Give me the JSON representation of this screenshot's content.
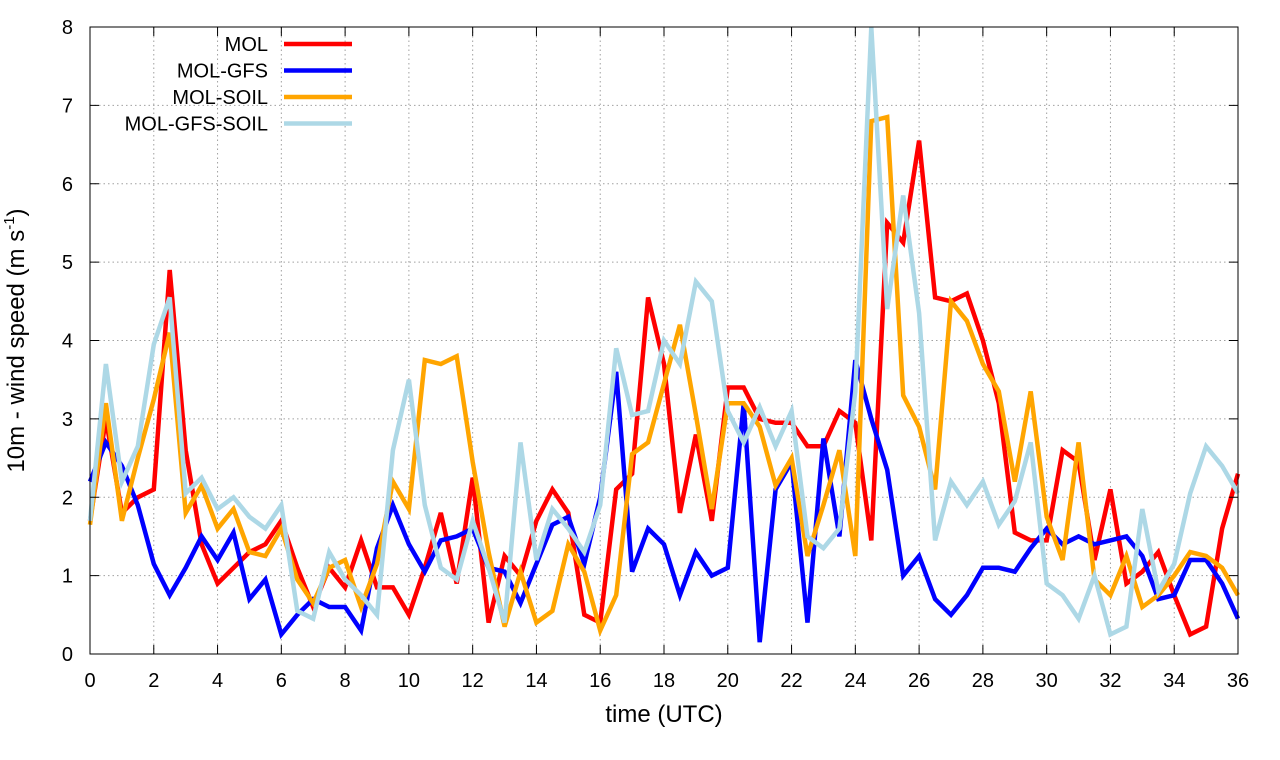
{
  "chart_data": {
    "type": "line",
    "title": "",
    "xlabel": "time (UTC)",
    "ylabel_main": "10m - wind speed  (m s",
    "ylabel_sup": "-1",
    "ylabel_tail": ")",
    "xlim": [
      0,
      36
    ],
    "ylim": [
      0,
      8
    ],
    "xticks": [
      0,
      2,
      4,
      6,
      8,
      10,
      12,
      14,
      16,
      18,
      20,
      22,
      24,
      26,
      28,
      30,
      32,
      34,
      36
    ],
    "yticks": [
      0,
      1,
      2,
      3,
      4,
      5,
      6,
      7,
      8
    ],
    "grid": true,
    "legend_position": "top-left",
    "x": [
      0,
      0.5,
      1,
      1.5,
      2,
      2.5,
      3,
      3.5,
      4,
      4.5,
      5,
      5.5,
      6,
      6.5,
      7,
      7.5,
      8,
      8.5,
      9,
      9.5,
      10,
      10.5,
      11,
      11.5,
      12,
      12.5,
      13,
      13.5,
      14,
      14.5,
      15,
      15.5,
      16,
      16.5,
      17,
      17.5,
      18,
      18.5,
      19,
      19.5,
      20,
      20.5,
      21,
      21.5,
      22,
      22.5,
      23,
      23.5,
      24,
      24.5,
      25,
      25.5,
      26,
      26.5,
      27,
      27.5,
      28,
      28.5,
      29,
      29.5,
      30,
      30.5,
      31,
      31.5,
      32,
      32.5,
      33,
      33.5,
      34,
      34.5,
      35,
      35.5,
      36
    ],
    "series": [
      {
        "name": "MOL",
        "color": "#ff0000",
        "values": [
          1.7,
          3.0,
          1.8,
          2.0,
          2.1,
          4.9,
          2.6,
          1.4,
          0.9,
          1.1,
          1.3,
          1.4,
          1.7,
          1.1,
          0.6,
          1.1,
          0.85,
          1.45,
          0.85,
          0.85,
          0.5,
          1.1,
          1.8,
          0.9,
          2.25,
          0.4,
          1.25,
          1.0,
          1.7,
          2.1,
          1.8,
          0.5,
          0.4,
          2.1,
          2.3,
          4.55,
          3.7,
          1.8,
          2.8,
          1.7,
          3.4,
          3.4,
          3.0,
          2.95,
          2.95,
          2.65,
          2.65,
          3.1,
          2.95,
          1.45,
          5.5,
          5.25,
          6.55,
          4.55,
          4.5,
          4.6,
          4.0,
          3.2,
          1.55,
          1.45,
          1.45,
          2.6,
          2.45,
          1.2,
          2.1,
          0.9,
          1.05,
          1.3,
          0.75,
          0.25,
          0.35,
          1.6,
          2.3
        ]
      },
      {
        "name": "MOL-GFS",
        "color": "#0000ff",
        "values": [
          2.2,
          2.7,
          2.4,
          1.9,
          1.15,
          0.75,
          1.1,
          1.5,
          1.2,
          1.55,
          0.7,
          0.95,
          0.25,
          0.5,
          0.7,
          0.6,
          0.6,
          0.3,
          1.35,
          1.9,
          1.4,
          1.05,
          1.45,
          1.5,
          1.6,
          1.1,
          1.05,
          0.65,
          1.15,
          1.65,
          1.75,
          1.15,
          2.0,
          3.6,
          1.05,
          1.6,
          1.4,
          0.75,
          1.3,
          1.0,
          1.1,
          3.2,
          0.15,
          2.1,
          2.45,
          0.4,
          2.75,
          1.5,
          3.75,
          3.0,
          2.35,
          1.0,
          1.25,
          0.7,
          0.5,
          0.75,
          1.1,
          1.1,
          1.05,
          1.35,
          1.6,
          1.4,
          1.5,
          1.4,
          1.45,
          1.5,
          1.25,
          0.7,
          0.75,
          1.2,
          1.2,
          0.9,
          0.45
        ]
      },
      {
        "name": "MOL-SOIL",
        "color": "#ffa500",
        "values": [
          1.65,
          3.2,
          1.7,
          2.5,
          3.25,
          4.1,
          1.8,
          2.15,
          1.6,
          1.85,
          1.3,
          1.25,
          1.6,
          0.95,
          0.65,
          1.1,
          1.2,
          0.6,
          1.15,
          2.2,
          1.85,
          3.75,
          3.7,
          3.8,
          2.45,
          1.3,
          0.35,
          1.05,
          0.4,
          0.55,
          1.4,
          1.05,
          0.3,
          0.75,
          2.55,
          2.7,
          3.45,
          4.2,
          3.05,
          1.85,
          3.2,
          3.2,
          2.9,
          2.15,
          2.5,
          1.25,
          1.9,
          2.6,
          1.25,
          6.8,
          6.85,
          3.3,
          2.9,
          2.1,
          4.5,
          4.25,
          3.7,
          3.35,
          2.2,
          3.35,
          1.75,
          1.2,
          2.7,
          0.95,
          0.75,
          1.25,
          0.6,
          0.75,
          1.0,
          1.3,
          1.25,
          1.1,
          0.75
        ]
      },
      {
        "name": "MOL-GFS-SOIL",
        "color": "#add8e6",
        "values": [
          1.7,
          3.7,
          2.2,
          2.65,
          3.95,
          4.55,
          2.05,
          2.25,
          1.85,
          2.0,
          1.75,
          1.6,
          1.9,
          0.55,
          0.45,
          1.3,
          0.95,
          0.75,
          0.5,
          2.6,
          3.5,
          1.9,
          1.1,
          0.95,
          1.7,
          1.1,
          0.4,
          2.7,
          1.2,
          1.85,
          1.6,
          1.3,
          1.9,
          3.9,
          3.05,
          3.1,
          4.0,
          3.7,
          4.75,
          4.5,
          3.1,
          2.7,
          3.15,
          2.65,
          3.1,
          1.5,
          1.35,
          1.6,
          3.35,
          8.0,
          4.4,
          5.85,
          4.35,
          1.45,
          2.2,
          1.9,
          2.2,
          1.65,
          1.95,
          2.7,
          0.9,
          0.75,
          0.45,
          1.0,
          0.25,
          0.35,
          1.85,
          0.8,
          1.15,
          2.05,
          2.65,
          2.4,
          2.05
        ]
      }
    ]
  }
}
